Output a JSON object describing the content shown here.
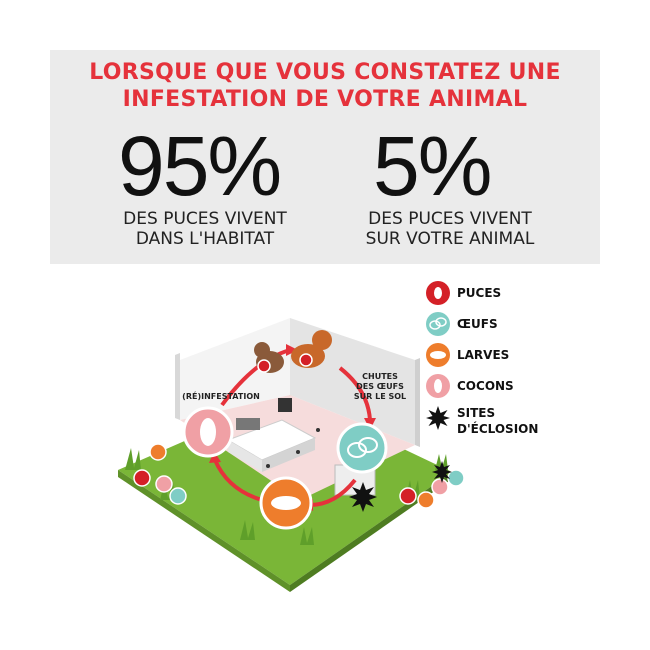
{
  "header": {
    "line1": "LORSQUE QUE VOUS CONSTATEZ UNE",
    "line2": "INFESTATION DE VOTRE ANIMAL",
    "stat_home": {
      "value": "95%",
      "caption1": "DES PUCES VIVENT",
      "caption2": "DANS L'HABITAT"
    },
    "stat_pet": {
      "value": "5%",
      "caption1": "DES PUCES VIVENT",
      "caption2": "SUR VOTRE ANIMAL"
    }
  },
  "legend": {
    "fleas": "PUCES",
    "eggs": "ŒUFS",
    "larvae": "LARVES",
    "cocoons": "COCONS",
    "hatching1": "SITES",
    "hatching2": "D'ÉCLOSION"
  },
  "scene": {
    "reinfestation": "(RÉ)INFESTATION",
    "drop1": "CHUTES",
    "drop2": "DES ŒUFS",
    "drop3": "SUR LE SOL"
  },
  "colors": {
    "accent": "#e5323b",
    "fleas": "#d42027",
    "eggs": "#7fcdc5",
    "larvae": "#ee7d2c",
    "cocoons": "#f0a0a5",
    "grass": "#7ab637"
  }
}
